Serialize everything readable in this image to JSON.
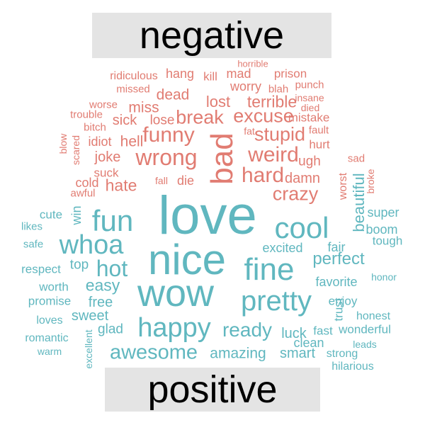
{
  "labels": {
    "negative": "negative",
    "positive": "positive"
  },
  "colors": {
    "negative": "#e17c72",
    "positive": "#60b7bf",
    "label_bg": "#e4e4e4",
    "label_text": "#000000"
  },
  "chart_data": {
    "type": "wordcloud",
    "groups": [
      {
        "name": "negative",
        "words": [
          {
            "text": "horrible",
            "rank": 1
          },
          {
            "text": "ridiculous",
            "rank": 2
          },
          {
            "text": "hang",
            "rank": 2
          },
          {
            "text": "kill",
            "rank": 2
          },
          {
            "text": "mad",
            "rank": 2
          },
          {
            "text": "prison",
            "rank": 2
          },
          {
            "text": "missed",
            "rank": 1
          },
          {
            "text": "worry",
            "rank": 2
          },
          {
            "text": "blah",
            "rank": 1
          },
          {
            "text": "punch",
            "rank": 1
          },
          {
            "text": "dead",
            "rank": 3
          },
          {
            "text": "terrible",
            "rank": 3
          },
          {
            "text": "insane",
            "rank": 1
          },
          {
            "text": "worse",
            "rank": 1
          },
          {
            "text": "miss",
            "rank": 3
          },
          {
            "text": "lost",
            "rank": 3
          },
          {
            "text": "died",
            "rank": 1
          },
          {
            "text": "trouble",
            "rank": 1
          },
          {
            "text": "sick",
            "rank": 3
          },
          {
            "text": "lose",
            "rank": 2
          },
          {
            "text": "break",
            "rank": 4
          },
          {
            "text": "excuse",
            "rank": 4
          },
          {
            "text": "mistake",
            "rank": 2
          },
          {
            "text": "bitch",
            "rank": 1
          },
          {
            "text": "fat",
            "rank": 1
          },
          {
            "text": "fault",
            "rank": 1
          },
          {
            "text": "funny",
            "rank": 5
          },
          {
            "text": "stupid",
            "rank": 4
          },
          {
            "text": "blow",
            "rank": 1
          },
          {
            "text": "idiot",
            "rank": 2
          },
          {
            "text": "hell",
            "rank": 3
          },
          {
            "text": "bad",
            "rank": 6
          },
          {
            "text": "hurt",
            "rank": 2
          },
          {
            "text": "scared",
            "rank": 1
          },
          {
            "text": "joke",
            "rank": 3
          },
          {
            "text": "wrong",
            "rank": 5
          },
          {
            "text": "weird",
            "rank": 5
          },
          {
            "text": "ugh",
            "rank": 2
          },
          {
            "text": "sad",
            "rank": 1
          },
          {
            "text": "suck",
            "rank": 2
          },
          {
            "text": "hard",
            "rank": 5
          },
          {
            "text": "damn",
            "rank": 3
          },
          {
            "text": "fall",
            "rank": 1
          },
          {
            "text": "die",
            "rank": 2
          },
          {
            "text": "cold",
            "rank": 2
          },
          {
            "text": "hate",
            "rank": 4
          },
          {
            "text": "crazy",
            "rank": 4
          },
          {
            "text": "worst",
            "rank": 1
          },
          {
            "text": "broke",
            "rank": 1
          },
          {
            "text": "awful",
            "rank": 2
          }
        ]
      },
      {
        "name": "positive",
        "words": [
          {
            "text": "love",
            "rank": 10
          },
          {
            "text": "nice",
            "rank": 9
          },
          {
            "text": "wow",
            "rank": 8
          },
          {
            "text": "fine",
            "rank": 7
          },
          {
            "text": "cool",
            "rank": 6
          },
          {
            "text": "fun",
            "rank": 6
          },
          {
            "text": "pretty",
            "rank": 6
          },
          {
            "text": "happy",
            "rank": 5
          },
          {
            "text": "whoa",
            "rank": 5
          },
          {
            "text": "hot",
            "rank": 4
          },
          {
            "text": "awesome",
            "rank": 4
          },
          {
            "text": "ready",
            "rank": 4
          },
          {
            "text": "perfect",
            "rank": 3
          },
          {
            "text": "beautiful",
            "rank": 3
          },
          {
            "text": "easy",
            "rank": 3
          },
          {
            "text": "amazing",
            "rank": 3
          },
          {
            "text": "smart",
            "rank": 2
          },
          {
            "text": "luck",
            "rank": 2
          },
          {
            "text": "excited",
            "rank": 2
          },
          {
            "text": "favorite",
            "rank": 2
          },
          {
            "text": "free",
            "rank": 2
          },
          {
            "text": "sweet",
            "rank": 2
          },
          {
            "text": "glad",
            "rank": 2
          },
          {
            "text": "top",
            "rank": 2
          },
          {
            "text": "win",
            "rank": 2
          },
          {
            "text": "cute",
            "rank": 2
          },
          {
            "text": "super",
            "rank": 2
          },
          {
            "text": "boom",
            "rank": 2
          },
          {
            "text": "tough",
            "rank": 2
          },
          {
            "text": "fair",
            "rank": 2
          },
          {
            "text": "enjoy",
            "rank": 2
          },
          {
            "text": "trust",
            "rank": 2
          },
          {
            "text": "honest",
            "rank": 2
          },
          {
            "text": "fast",
            "rank": 2
          },
          {
            "text": "wonderful",
            "rank": 2
          },
          {
            "text": "clean",
            "rank": 2
          },
          {
            "text": "strong",
            "rank": 2
          },
          {
            "text": "hilarious",
            "rank": 2
          },
          {
            "text": "leads",
            "rank": 1
          },
          {
            "text": "honor",
            "rank": 1
          },
          {
            "text": "likes",
            "rank": 2
          },
          {
            "text": "safe",
            "rank": 1
          },
          {
            "text": "respect",
            "rank": 2
          },
          {
            "text": "worth",
            "rank": 2
          },
          {
            "text": "promise",
            "rank": 2
          },
          {
            "text": "loves",
            "rank": 2
          },
          {
            "text": "romantic",
            "rank": 2
          },
          {
            "text": "warm",
            "rank": 1
          },
          {
            "text": "excellent",
            "rank": 1
          }
        ]
      }
    ]
  }
}
